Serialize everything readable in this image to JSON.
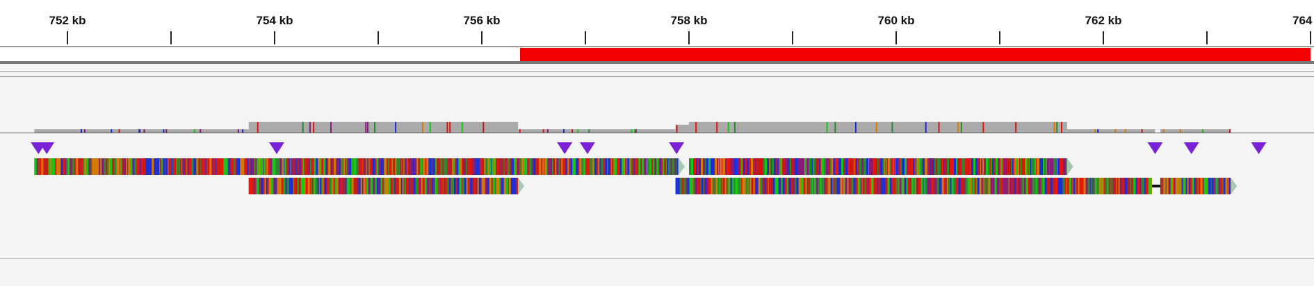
{
  "ruler": {
    "unit": "kb",
    "view_start_kb": 751.35,
    "view_end_kb": 764.0,
    "tick_labels": [
      "752 kb",
      "754 kb",
      "756 kb",
      "758 kb",
      "760 kb",
      "762 kb",
      "764"
    ],
    "major_kb": [
      752,
      754,
      756,
      758,
      760,
      762,
      764
    ],
    "minor_kb": [
      753,
      755,
      757,
      759,
      761,
      763
    ]
  },
  "region": {
    "start_kb": 756.37,
    "end_kb": 764.0,
    "color": "#f40000"
  },
  "colors": {
    "coverage": "#aaaaaa",
    "insertion_marker": "#7a22d6",
    "read_palette": [
      "#1a2dd8",
      "#e8140d",
      "#14c814",
      "#d87a00",
      "#8a1a7a",
      "#2a8a30",
      "#c81818"
    ]
  },
  "coverage": [
    {
      "start_kb": 751.68,
      "end_kb": 753.75,
      "level": 0.3
    },
    {
      "start_kb": 753.75,
      "end_kb": 756.35,
      "level": 0.95
    },
    {
      "start_kb": 756.35,
      "end_kb": 757.87,
      "level": 0.3
    },
    {
      "start_kb": 757.87,
      "end_kb": 758.0,
      "level": 0.7
    },
    {
      "start_kb": 758.0,
      "end_kb": 761.65,
      "level": 0.95
    },
    {
      "start_kb": 761.65,
      "end_kb": 762.5,
      "level": 0.3
    },
    {
      "start_kb": 762.55,
      "end_kb": 763.23,
      "level": 0.3
    }
  ],
  "insertions_kb": [
    751.72,
    751.8,
    754.02,
    756.8,
    757.02,
    757.88,
    762.5,
    762.85,
    763.5
  ],
  "reads": [
    {
      "row": 0,
      "start_kb": 751.68,
      "end_kb": 757.9,
      "strand": "+"
    },
    {
      "row": 0,
      "start_kb": 758.0,
      "end_kb": 761.65,
      "strand": "+"
    },
    {
      "row": 1,
      "start_kb": 753.75,
      "end_kb": 756.35,
      "strand": "+"
    },
    {
      "row": 1,
      "start_kb": 757.87,
      "end_kb": 763.23,
      "strand": "+",
      "deletion_kb": [
        762.47,
        762.55
      ]
    }
  ]
}
